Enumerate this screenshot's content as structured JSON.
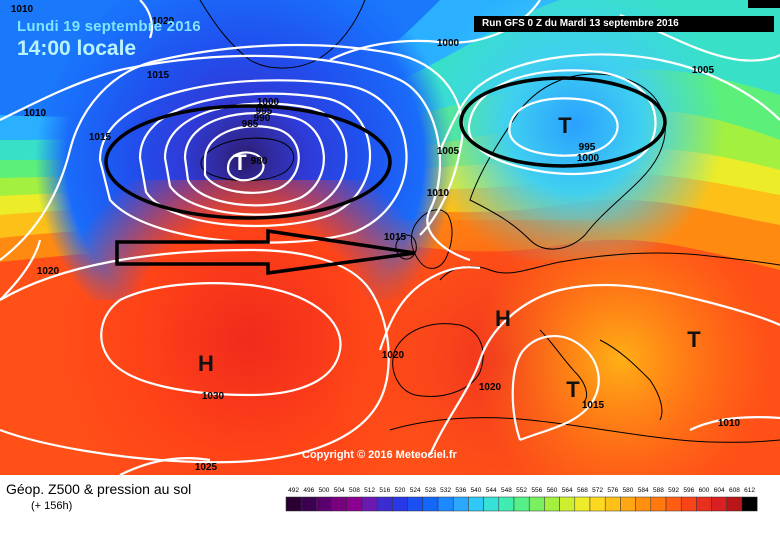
{
  "header": {
    "date_label": "Lundi 19 septembre 2016",
    "time_label": "14:00 locale",
    "run_label": "Run GFS 0 Z du Mardi 13 septembre 2016"
  },
  "map": {
    "copyright": "Copyright © 2016 Meteociel.fr",
    "pressure_labels": [
      {
        "id": "p1010a",
        "text": "1010"
      },
      {
        "id": "p1020top",
        "text": "1020"
      },
      {
        "id": "p1015a",
        "text": "1015"
      },
      {
        "id": "p1010b",
        "text": "1010"
      },
      {
        "id": "p1015b",
        "text": "1015"
      },
      {
        "id": "p1000a",
        "text": "1000"
      },
      {
        "id": "p990",
        "text": "990"
      },
      {
        "id": "p995",
        "text": "995"
      },
      {
        "id": "p985",
        "text": "985"
      },
      {
        "id": "p980",
        "text": "980"
      },
      {
        "id": "p1000b",
        "text": "1000"
      },
      {
        "id": "p1005a",
        "text": "1005"
      },
      {
        "id": "p1005b",
        "text": "1005"
      },
      {
        "id": "p995b",
        "text": "995"
      },
      {
        "id": "p1000c",
        "text": "1000"
      },
      {
        "id": "p1010c",
        "text": "1010"
      },
      {
        "id": "p1015c",
        "text": "1015"
      },
      {
        "id": "p1020b",
        "text": "1020"
      },
      {
        "id": "p1020c",
        "text": "1020"
      },
      {
        "id": "p1030",
        "text": "1030"
      },
      {
        "id": "p1025",
        "text": "1025"
      },
      {
        "id": "p1020d",
        "text": "1020"
      },
      {
        "id": "p1015d",
        "text": "1015"
      },
      {
        "id": "p1010d",
        "text": "1010"
      }
    ],
    "centers": [
      {
        "id": "low-iceland",
        "text": "T"
      },
      {
        "id": "low-scandinavia",
        "text": "T"
      },
      {
        "id": "high-atlantic",
        "text": "H"
      },
      {
        "id": "high-europe",
        "text": "H"
      },
      {
        "id": "low-adriatic",
        "text": "T"
      },
      {
        "id": "low-east",
        "text": "T"
      }
    ]
  },
  "legend": {
    "title": "Géop. Z500 & pression au sol",
    "subtitle": "(+ 156h)",
    "scale_values": [
      "492",
      "496",
      "500",
      "504",
      "508",
      "512",
      "516",
      "520",
      "524",
      "528",
      "532",
      "536",
      "540",
      "544",
      "548",
      "552",
      "556",
      "560",
      "564",
      "568",
      "572",
      "576",
      "580",
      "584",
      "588",
      "592",
      "596",
      "600",
      "604",
      "608",
      "612"
    ],
    "scale_colors": [
      "#2a0030",
      "#3c0050",
      "#5a006e",
      "#76007e",
      "#8a0090",
      "#6a1ab0",
      "#3a2cd0",
      "#2838e6",
      "#1a50f0",
      "#1468f8",
      "#1e88ff",
      "#2aa8ff",
      "#30c8f6",
      "#38e0d8",
      "#40ecb0",
      "#56f088",
      "#7af060",
      "#a4f040",
      "#ccf030",
      "#ecec28",
      "#fcd820",
      "#ffc018",
      "#ffa814",
      "#ff9010",
      "#ff7810",
      "#ff5c14",
      "#f84418",
      "#e8301e",
      "#d82020",
      "#b81618",
      "#000000"
    ]
  }
}
